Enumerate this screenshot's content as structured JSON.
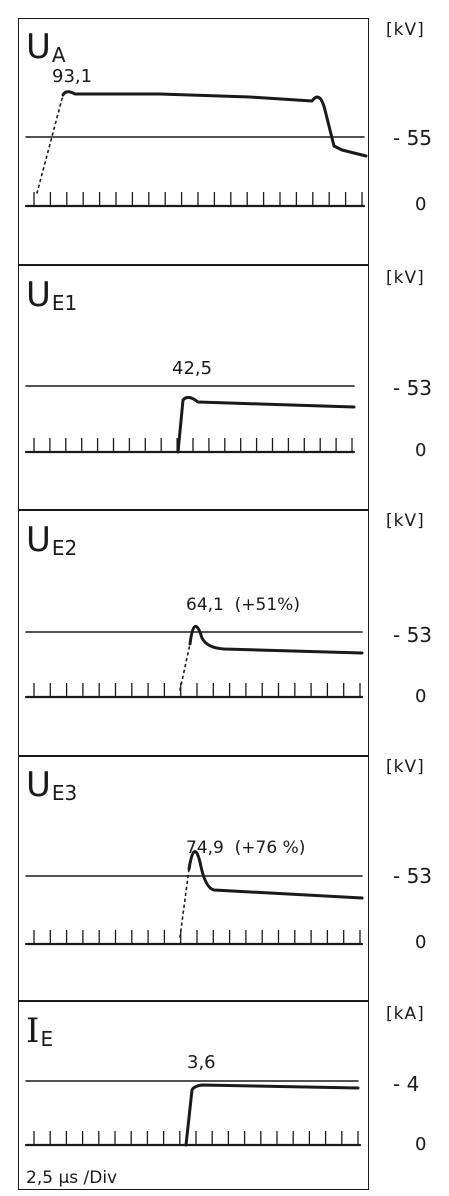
{
  "panels": [
    {
      "label": "U",
      "sub": "A",
      "unit": "[kV]",
      "level": "- 55",
      "zero": "0",
      "peak": "93,1"
    },
    {
      "label": "U",
      "sub": "E1",
      "unit": "[kV]",
      "level": "- 53",
      "zero": "0",
      "peak": "42,5"
    },
    {
      "label": "U",
      "sub": "E2",
      "unit": "[kV]",
      "level": "- 53",
      "zero": "0",
      "peak": "64,1  (+51%)"
    },
    {
      "label": "U",
      "sub": "E3",
      "unit": "[kV]",
      "level": "- 53",
      "zero": "0",
      "peak": "74,9  (+76 %)"
    },
    {
      "label": "I",
      "sub": "E",
      "unit": "[kA]",
      "level": "- 4",
      "zero": "0",
      "peak": "3,6"
    }
  ],
  "timebase": "2,5 μs /Div",
  "chart_data": {
    "type": "line",
    "x_unit_per_div": 2.5,
    "divisions": 20,
    "series": [
      {
        "name": "UA",
        "unit": "kV",
        "reference_level": 55,
        "peak": 93.1
      },
      {
        "name": "UE1",
        "unit": "kV",
        "reference_level": 53,
        "peak": 42.5
      },
      {
        "name": "UE2",
        "unit": "kV",
        "reference_level": 53,
        "peak": 64.1,
        "increase_percent": 51
      },
      {
        "name": "UE3",
        "unit": "kV",
        "reference_level": 53,
        "peak": 74.9,
        "increase_percent": 76
      },
      {
        "name": "IE",
        "unit": "kA",
        "reference_level": 4,
        "peak": 3.6
      }
    ]
  }
}
